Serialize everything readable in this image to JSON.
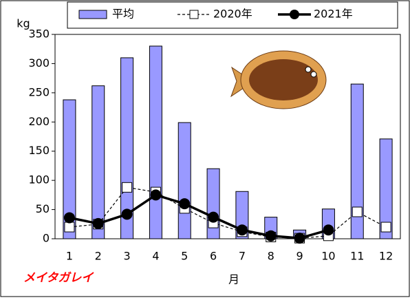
{
  "chart_data": {
    "type": "bar",
    "y_label": "kg",
    "x_label": "月",
    "annotation": "メイタガレイ",
    "categories": [
      "1",
      "2",
      "3",
      "4",
      "5",
      "6",
      "7",
      "8",
      "9",
      "10",
      "11",
      "12"
    ],
    "series": [
      {
        "name": "平均",
        "type": "bar",
        "color": "#9999ff",
        "values": [
          238,
          262,
          310,
          330,
          199,
          120,
          81,
          37,
          15,
          51,
          265,
          171
        ]
      },
      {
        "name": "2020年",
        "type": "line",
        "color": "#000000",
        "dash": true,
        "marker": "square",
        "values": [
          20,
          25,
          88,
          80,
          52,
          27,
          12,
          3,
          1,
          5,
          46,
          20
        ]
      },
      {
        "name": "2021年",
        "type": "line",
        "color": "#000000",
        "dash": false,
        "marker": "circle",
        "values": [
          36,
          26,
          42,
          75,
          60,
          37,
          15,
          5,
          1,
          15,
          null,
          null
        ]
      }
    ],
    "ylim": [
      0,
      350
    ],
    "yticks": [
      0,
      50,
      100,
      150,
      200,
      250,
      300,
      350
    ],
    "grid": false
  }
}
